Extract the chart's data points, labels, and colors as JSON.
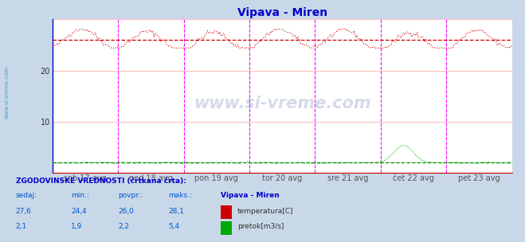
{
  "title": "Vipava - Miren",
  "title_color": "#0000cc",
  "bg_color": "#c8d8e8",
  "plot_bg_color": "#ffffff",
  "grid_color": "#d0d0d0",
  "grid_h_color": "#ffb0b0",
  "ylim": [
    0,
    30
  ],
  "yticks": [
    10,
    20
  ],
  "n_points": 336,
  "temp_min": 24.4,
  "temp_max": 28.1,
  "temp_avg": 26.0,
  "temp_current": 27.6,
  "flow_min": 1.9,
  "flow_max": 5.4,
  "flow_avg": 2.2,
  "flow_current": 2.1,
  "temp_color": "#dd0000",
  "temp_hist_color": "#cc0000",
  "flow_color": "#00aa00",
  "flow_hist_color": "#008800",
  "vline_color": "#ff00ff",
  "axis_color": "#0000cc",
  "xlabel_color": "#555555",
  "text_color": "#0000cc",
  "watermark_color": "#1a3a8a",
  "tick_labels": [
    "sob 17 avg",
    "ned 18 avg",
    "pon 19 avg",
    "tor 20 avg",
    "sre 21 avg",
    "čet 22 avg",
    "pet 23 avg"
  ],
  "stat_label": "ZGODOVINSKE VREDNOSTI (črtkana črta):",
  "col_headers": [
    "sedaj:",
    "min.:",
    "povpr.:",
    "maks.:"
  ],
  "station_name": "Vipava - Miren",
  "legend_temp": "temperatura[C]",
  "legend_flow": "pretok[m3/s]",
  "temp_vals": [
    "27,6",
    "24,4",
    "26,0",
    "28,1"
  ],
  "flow_vals": [
    "2,1",
    "1,9",
    "2,2",
    "5,4"
  ],
  "watermark_text": "www.si-vreme.com",
  "left_label": "www.si-vreme.com"
}
